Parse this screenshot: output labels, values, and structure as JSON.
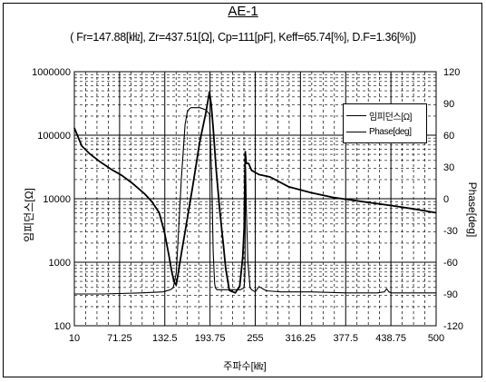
{
  "chart_data": {
    "type": "line",
    "title": "AE-1",
    "subtitle": "( Fr=147.88[㎑], Zr=437.51[Ω], Cp=111[pF], Keff=65.74[%], D.F=1.36[%])",
    "xlabel": "주파수[㎑]",
    "ylabel_left": "임피던스[Ω]",
    "ylabel_right": "Phase[deg]",
    "xlim": [
      10,
      500
    ],
    "x_ticks": [
      "10",
      "71.25",
      "132.5",
      "193.75",
      "255",
      "316.25",
      "377.5",
      "438.75",
      "500"
    ],
    "ylim_left": [
      100,
      1000000
    ],
    "y_scale_left": "log",
    "y_ticks_left": [
      "100",
      "1000",
      "10000",
      "100000",
      "1000000"
    ],
    "ylim_right": [
      -120,
      120
    ],
    "y_ticks_right": [
      "-120",
      "-90",
      "-60",
      "-30",
      "0",
      "30",
      "60",
      "90",
      "120"
    ],
    "grid": true,
    "legend_position": "top-right",
    "series": [
      {
        "name": "임피던스[Ω]",
        "axis": "left",
        "color": "#000000",
        "x": [
          10,
          20,
          30,
          45,
          60,
          75,
          90,
          105,
          115,
          125,
          132,
          138,
          142,
          145,
          147.9,
          150,
          155,
          160,
          170,
          180,
          188,
          193,
          195.5,
          198,
          202,
          207,
          212,
          215,
          220,
          228,
          234,
          238,
          240,
          241.5,
          243,
          246,
          250,
          260,
          275,
          300,
          330,
          360,
          400,
          440,
          470,
          500
        ],
        "y": [
          130000,
          68000,
          52000,
          38000,
          29000,
          23000,
          17000,
          12000,
          9000,
          6000,
          3000,
          1300,
          700,
          500,
          437.51,
          600,
          1400,
          3000,
          15000,
          80000,
          220000,
          480000,
          300000,
          130000,
          30000,
          6500,
          1800,
          800,
          360,
          330,
          420,
          1200,
          3500,
          55000,
          36000,
          36000,
          28000,
          24000,
          22000,
          15500,
          12500,
          10500,
          9000,
          7800,
          6900,
          6000
        ]
      },
      {
        "name": "Phase[deg]",
        "axis": "right",
        "color": "#000000",
        "x": [
          10,
          50,
          100,
          130,
          140,
          144,
          148,
          155,
          160,
          163,
          166,
          168,
          170,
          180,
          188,
          193,
          196,
          198,
          200,
          201,
          203,
          220,
          235,
          240,
          241,
          242,
          243,
          245,
          248,
          250,
          255,
          260,
          270,
          290,
          330,
          380,
          420,
          430,
          433,
          436,
          440,
          500
        ],
        "y": [
          -90,
          -90,
          -89,
          -88,
          -86,
          -84,
          -70,
          20,
          70,
          82,
          85,
          86,
          86,
          86,
          84,
          80,
          20,
          -50,
          -80,
          -84,
          -86,
          -86,
          -86,
          -84,
          -70,
          30,
          -10,
          -60,
          -84,
          -86,
          -88,
          -83,
          -87,
          -88,
          -88,
          -89,
          -89,
          -88,
          -85,
          -88,
          -89,
          -89
        ]
      }
    ]
  }
}
